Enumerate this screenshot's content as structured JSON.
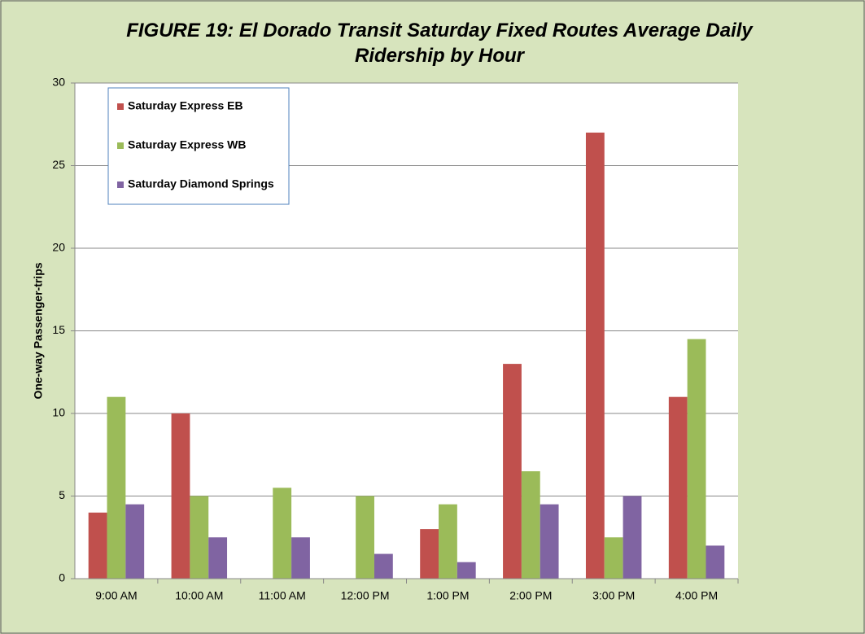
{
  "chart_data": {
    "type": "bar",
    "title": "FIGURE 19: El Dorado Transit Saturday Fixed Routes Average Daily Ridership by Hour",
    "y_label": "One-way Passenger-trips",
    "categories": [
      "9:00 AM",
      "10:00 AM",
      "11:00 AM",
      "12:00 PM",
      "1:00 PM",
      "2:00 PM",
      "3:00 PM",
      "4:00 PM"
    ],
    "series": [
      {
        "name": "Saturday Express EB",
        "color": "#c0504d",
        "values": [
          4,
          10,
          0,
          0,
          3,
          13,
          27,
          11
        ]
      },
      {
        "name": "Saturday Express WB",
        "color": "#9bbb59",
        "values": [
          11,
          5,
          5.5,
          5,
          4.5,
          6.5,
          2.5,
          14.5
        ]
      },
      {
        "name": "Saturday Diamond Springs",
        "color": "#8064a2",
        "values": [
          4.5,
          2.5,
          2.5,
          1.5,
          1,
          4.5,
          5,
          2
        ]
      }
    ],
    "ylim": [
      0,
      30
    ],
    "yticks": [
      0,
      5,
      10,
      15,
      20,
      25,
      30
    ],
    "grid": true,
    "legend": "top-left"
  }
}
